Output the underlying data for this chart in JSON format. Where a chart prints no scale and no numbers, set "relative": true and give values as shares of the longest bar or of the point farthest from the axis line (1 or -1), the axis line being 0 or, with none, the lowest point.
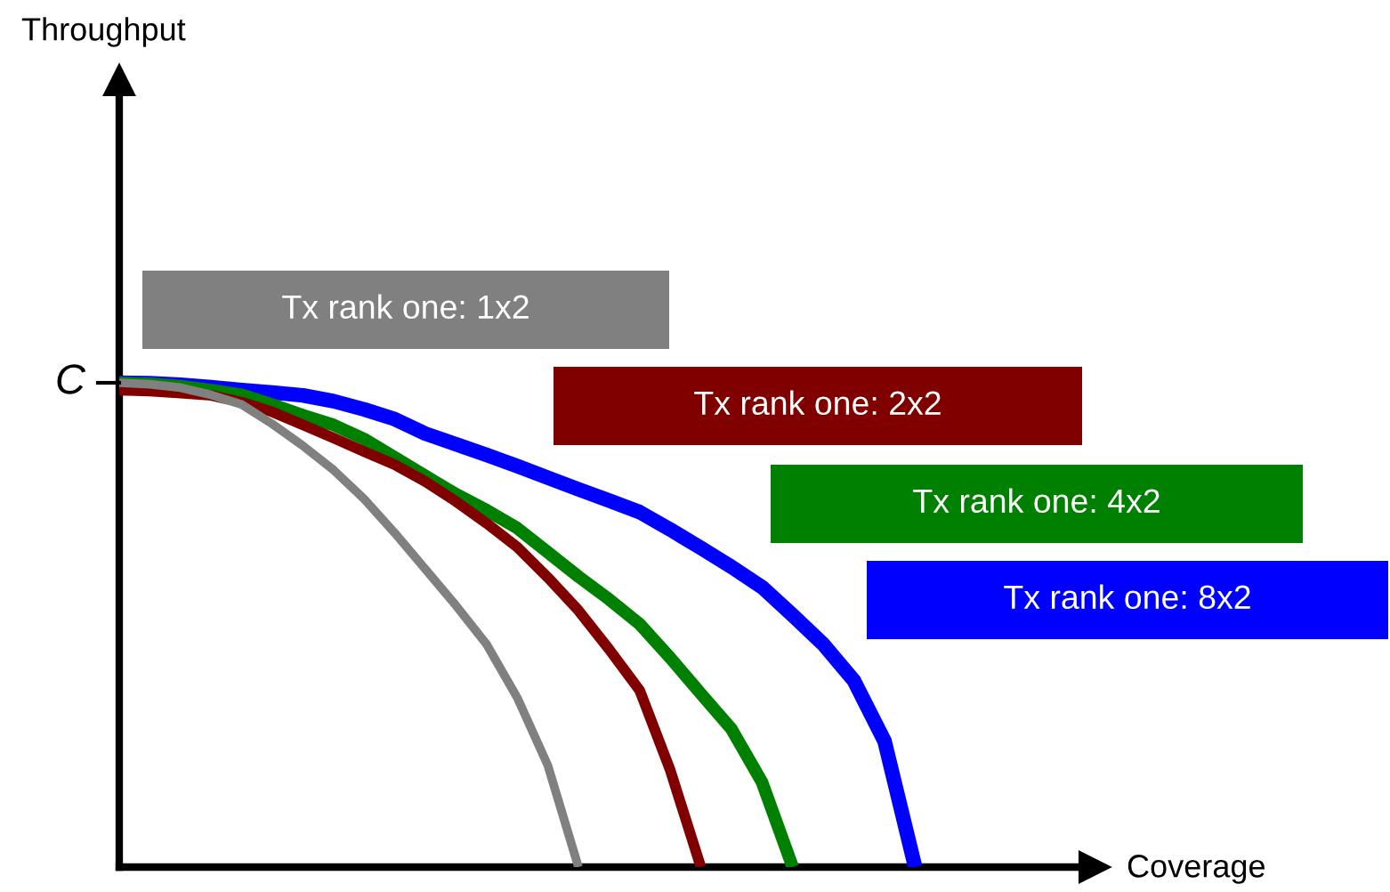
{
  "chart_data": {
    "type": "line",
    "relative": true,
    "annotations": [
      "Throughput",
      "C",
      "Coverage"
    ],
    "categories": [
      null,
      null,
      null,
      null,
      null,
      null,
      null,
      null,
      null,
      null,
      null,
      null,
      null,
      null,
      null,
      null,
      null,
      null,
      null,
      null,
      null,
      null,
      null,
      null,
      null,
      null,
      null
    ],
    "series": [
      {
        "name": "Tx rank one: 1x2",
        "color": "#808080",
        "values": [
          1.0,
          0.997,
          0.99,
          0.975,
          0.955,
          0.915,
          0.87,
          0.82,
          0.76,
          0.69,
          0.615,
          0.54,
          0.46,
          0.35,
          0.21,
          0,
          null,
          null,
          null,
          null,
          null,
          null,
          null,
          null,
          null,
          null,
          null
        ]
      },
      {
        "name": "Tx rank one: 2x2",
        "color": "#800000",
        "values": [
          0.985,
          0.983,
          0.979,
          0.974,
          0.96,
          0.94,
          0.913,
          0.886,
          0.858,
          0.831,
          0.796,
          0.755,
          0.71,
          0.661,
          0.598,
          0.53,
          0.45,
          0.365,
          0.2,
          0,
          null,
          null,
          null,
          null,
          null,
          null,
          null
        ]
      },
      {
        "name": "Tx rank one: 4x2",
        "color": "#008000",
        "values": [
          1.0,
          0.998,
          0.993,
          0.985,
          0.975,
          0.955,
          0.933,
          0.913,
          0.884,
          0.846,
          0.808,
          0.77,
          0.737,
          0.7,
          0.65,
          0.6,
          0.553,
          0.502,
          0.432,
          0.358,
          0.285,
          0.175,
          0,
          null,
          null,
          null,
          null
        ]
      },
      {
        "name": "Tx rank one: 8x2",
        "color": "#0000ff",
        "values": [
          1.0,
          0.999,
          0.996,
          0.991,
          0.985,
          0.98,
          0.974,
          0.962,
          0.945,
          0.925,
          0.895,
          0.873,
          0.851,
          0.828,
          0.804,
          0.78,
          0.757,
          0.733,
          0.697,
          0.659,
          0.62,
          0.578,
          0.52,
          0.46,
          0.385,
          0.26,
          0
        ]
      }
    ],
    "marker": "none",
    "line_style": "solid"
  }
}
